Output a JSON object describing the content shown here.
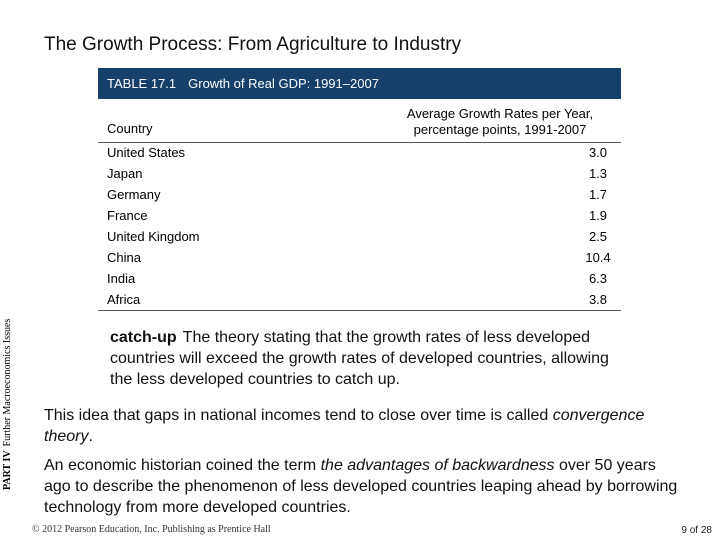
{
  "slide": {
    "title": "The Growth Process: From Agriculture to Industry",
    "side_part": "PART IV",
    "side_section": "Further Macroeconomics Issues"
  },
  "table": {
    "number": "TABLE 17.1",
    "title": "Growth of Real GDP: 1991–2007",
    "col_country": "Country",
    "col_growth_line1": "Average Growth Rates per Year,",
    "col_growth_line2": "percentage points, 1991-2007",
    "rows": [
      {
        "country": "United States",
        "value": "3.0"
      },
      {
        "country": "Japan",
        "value": "1.3"
      },
      {
        "country": "Germany",
        "value": "1.7"
      },
      {
        "country": "France",
        "value": "1.9"
      },
      {
        "country": "United Kingdom",
        "value": "2.5"
      },
      {
        "country": "China",
        "value": "10.4"
      },
      {
        "country": "India",
        "value": "6.3"
      },
      {
        "country": "Africa",
        "value": "3.8"
      }
    ]
  },
  "definition": {
    "term": "catch-up",
    "text": "The theory stating that the growth rates of less developed countries will exceed the growth rates of developed countries, allowing the less developed countries to catch up."
  },
  "paragraph1": {
    "before": "This idea that gaps in national incomes tend to close over time is called ",
    "emph": "convergence theory",
    "after": "."
  },
  "paragraph2": {
    "before": "An economic historian coined the term ",
    "emph": "the advantages of backwardness",
    "after": " over 50 years ago to describe the phenomenon of less developed countries leaping ahead by borrowing technology from more developed countries."
  },
  "footer": {
    "copyright": "© 2012 Pearson Education, Inc. Publishing as Prentice Hall",
    "page": "9 of 28"
  },
  "colors": {
    "table_header_bg": "#14406b",
    "table_header_text": "#ffffff"
  }
}
